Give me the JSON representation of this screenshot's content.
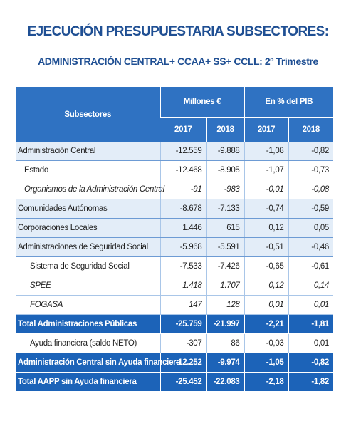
{
  "title": "EJECUCIÓN PRESUPUESTARIA SUBSECTORES:",
  "subtitle": "ADMINISTRACIÓN CENTRAL+ CCAA+ SS+ CCLL:  2º Trimestre",
  "table": {
    "header": {
      "label": "Subsectores",
      "groups": [
        {
          "label": "Millones €",
          "years": [
            "2017",
            "2018"
          ]
        },
        {
          "label": "En % del PIB",
          "years": [
            "2017",
            "2018"
          ]
        }
      ]
    },
    "rows": [
      [
        "Administración Central",
        "-12.559",
        "-9.888",
        "-1,08",
        "-0,82"
      ],
      [
        "Estado",
        "-12.468",
        "-8.905",
        "-1,07",
        "-0,73"
      ],
      [
        "Organismos de la Administración Central",
        "-91",
        "-983",
        "-0,01",
        "-0,08"
      ],
      [
        "Comunidades Autónomas",
        "-8.678",
        "-7.133",
        "-0,74",
        "-0,59"
      ],
      [
        "Corporaciones Locales",
        "1.446",
        "615",
        "0,12",
        "0,05"
      ],
      [
        "Administraciones de Seguridad Social",
        "-5.968",
        "-5.591",
        "-0,51",
        "-0,46"
      ],
      [
        "Sistema de Seguridad Social",
        "-7.533",
        "-7.426",
        "-0,65",
        "-0,61"
      ],
      [
        "SPEE",
        "1.418",
        "1.707",
        "0,12",
        "0,14"
      ],
      [
        "FOGASA",
        "147",
        "128",
        "0,01",
        "0,01"
      ],
      [
        "Total Administraciones Públicas",
        "-25.759",
        "-21.997",
        "-2,21",
        "-1,81"
      ],
      [
        "Ayuda financiera (saldo NETO)",
        "-307",
        "86",
        "-0,03",
        "0,01"
      ],
      [
        "Administración Central sin Ayuda financiera",
        "-12.252",
        "-9.974",
        "-1,05",
        "-0,82"
      ],
      [
        "Total AAPP sin Ayuda financiera",
        "-25.452",
        "-22.083",
        "-2,18",
        "-1,82"
      ]
    ]
  }
}
